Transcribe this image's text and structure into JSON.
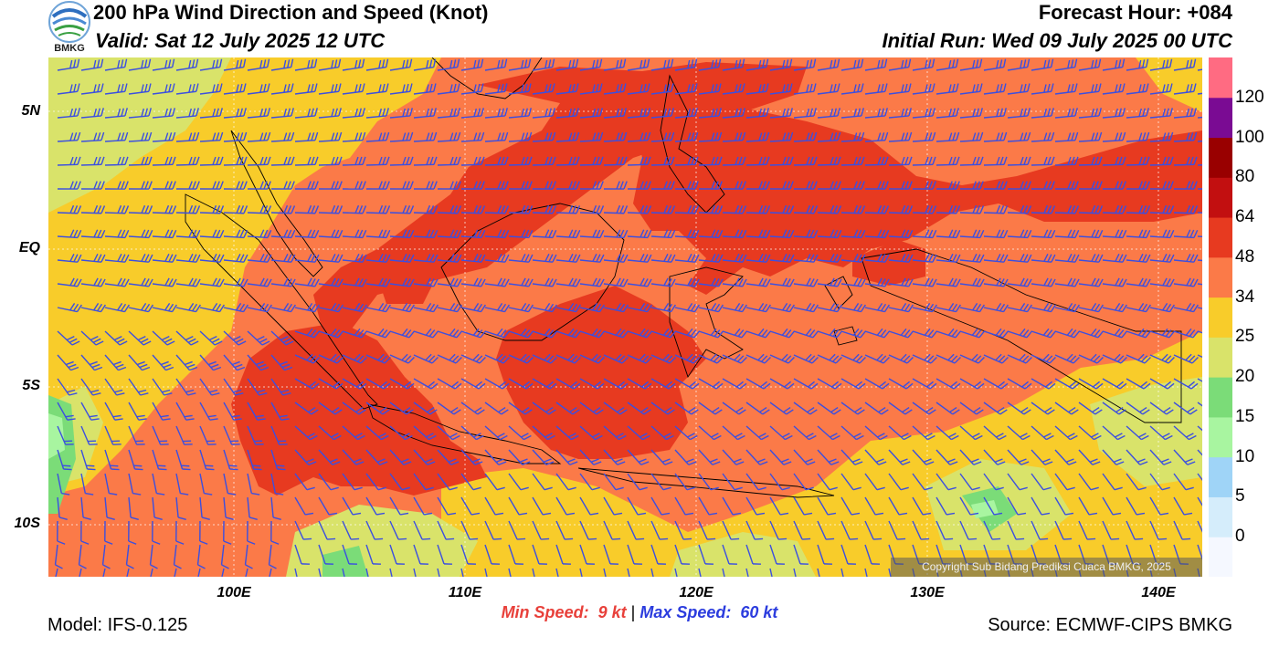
{
  "header": {
    "title": "200 hPa Wind Direction and Speed (Knot)",
    "valid": "Valid: Sat 12 July 2025 12 UTC",
    "forecast_hour": "Forecast Hour: +084",
    "initial_run": "Initial Run: Wed 09 July 2025 00 UTC",
    "logo_text": "BMKG"
  },
  "map": {
    "lat_labels": [
      "5N",
      "EQ",
      "5S",
      "10S"
    ],
    "lon_labels": [
      "100E",
      "110E",
      "120E",
      "130E",
      "140E"
    ],
    "copyright": "Copyright Sub Bidang Prediksi Cuaca BMKG, 2025",
    "barb_color": "#3b4fe0"
  },
  "speeds": {
    "min_label": "Min Speed:",
    "min_value": "9 kt",
    "separator": "|",
    "max_label": "Max Speed:",
    "max_value": "60 kt",
    "min_color": "#e8403a",
    "max_color": "#2b3cde"
  },
  "footer": {
    "model": "Model: IFS-0.125",
    "source": "Source: ECMWF-CIPS BMKG"
  },
  "colorbar": {
    "labels": [
      "120",
      "100",
      "80",
      "64",
      "48",
      "34",
      "25",
      "20",
      "15",
      "10",
      "5",
      "0"
    ],
    "colors": [
      "#f5f8ff",
      "#d5edfb",
      "#9fd4f7",
      "#a8f5a0",
      "#7bdc78",
      "#d9e36a",
      "#f8cc2a",
      "#fb7a48",
      "#e73a20",
      "#c20f10",
      "#990000",
      "#7a0b93",
      "#ff6b82"
    ]
  }
}
